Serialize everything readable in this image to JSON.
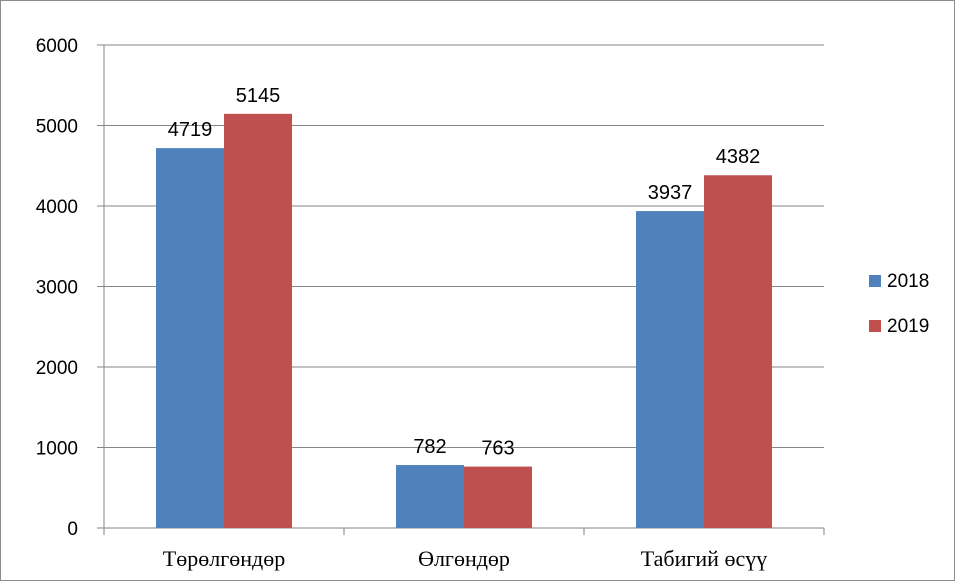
{
  "chart_data": {
    "type": "bar",
    "categories": [
      "Төрөлгөндөр",
      "Өлгөндөр",
      "Табигий өсүү"
    ],
    "series": [
      {
        "name": "2018",
        "values": [
          4719,
          782,
          3937
        ],
        "color": "#4f81bd"
      },
      {
        "name": "2019",
        "values": [
          5145,
          763,
          4382
        ],
        "color": "#c0504d"
      }
    ],
    "ylim": [
      0,
      6000
    ],
    "yticks": [
      "0",
      "1000",
      "2000",
      "3000",
      "4000",
      "5000",
      "6000"
    ],
    "grid": true,
    "legend_position": "right",
    "title": "",
    "xlabel": "",
    "ylabel": ""
  }
}
